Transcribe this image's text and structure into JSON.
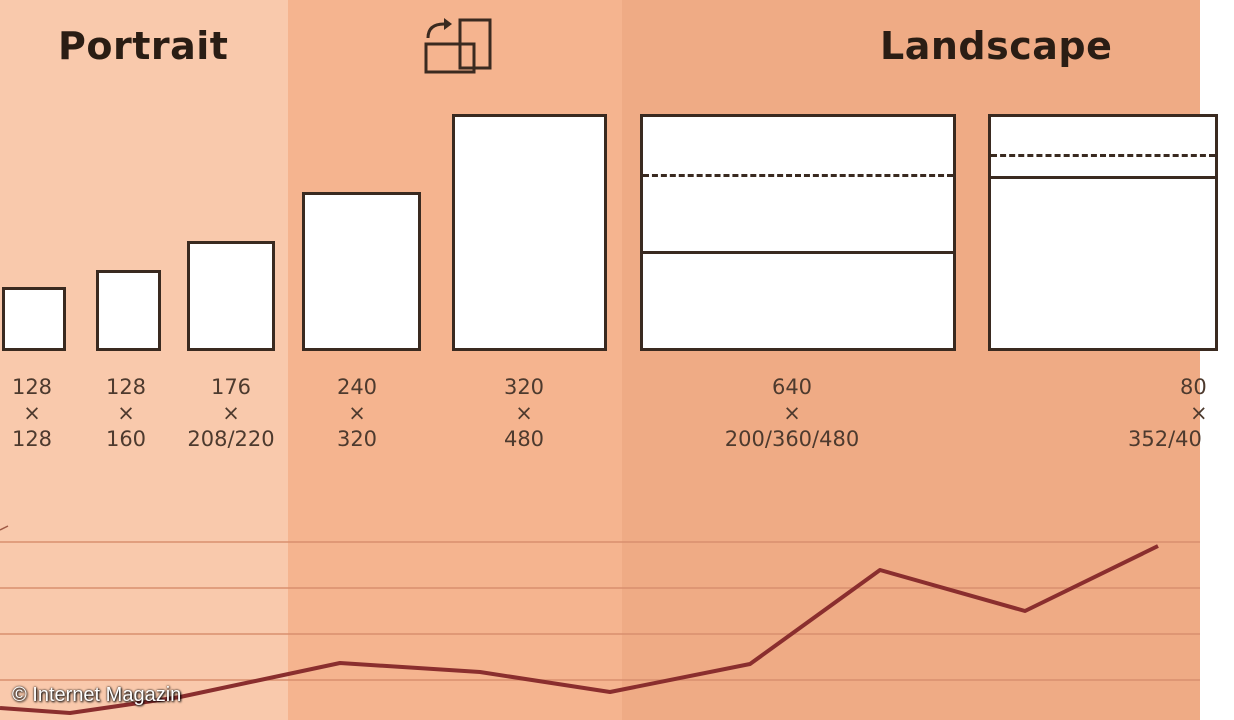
{
  "headings": {
    "portrait": "Portrait",
    "landscape": "Landscape"
  },
  "icons": {
    "rotate": "rotate-orientation-icon"
  },
  "resolutions": [
    {
      "w": "128",
      "x": "×",
      "h": "128"
    },
    {
      "w": "128",
      "x": "×",
      "h": "160"
    },
    {
      "w": "176",
      "x": "×",
      "h": "208/220"
    },
    {
      "w": "240",
      "x": "×",
      "h": "320"
    },
    {
      "w": "320",
      "x": "×",
      "h": "480"
    },
    {
      "w": "640",
      "x": "×",
      "h": "200/360/480"
    },
    {
      "w": "80",
      "x": "×",
      "h": "352/40"
    }
  ],
  "copyright": "© Internet Magazin",
  "colors": {
    "band_portrait": "#f9c9ac",
    "band_middle": "#f5b48f",
    "band_landscape": "#efab85",
    "trend_line": "#8a2e2e",
    "gridline": "#d98f6f"
  }
}
